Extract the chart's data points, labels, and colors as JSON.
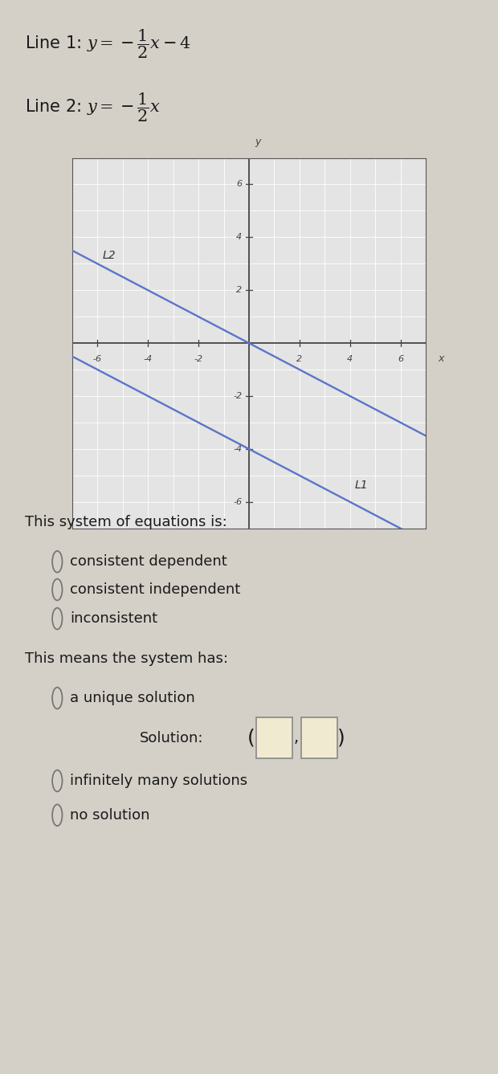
{
  "line1_label": "L1",
  "line2_label": "L2",
  "line_color": "#5b75c8",
  "line1_slope": -0.5,
  "line1_intercept": -4,
  "line2_slope": -0.5,
  "line2_intercept": 0,
  "xlim": [
    -7,
    7
  ],
  "ylim": [
    -7,
    7
  ],
  "xticks": [
    -6,
    -4,
    -2,
    2,
    4,
    6
  ],
  "yticks": [
    -6,
    -4,
    -2,
    2,
    4,
    6
  ],
  "graph_bg": "#e4e4e4",
  "page_bg": "#d4d0c8",
  "system_label": "This system of equations is:",
  "options1": [
    "consistent dependent",
    "consistent independent",
    "inconsistent"
  ],
  "means_label": "This means the system has:",
  "option_unique": "a unique solution",
  "option_infinite": "infinitely many solutions",
  "option_none": "no solution",
  "text_color": "#1a1a1a",
  "radio_color": "#777777",
  "box_fill": "#f0ead0",
  "box_stroke": "#888888",
  "grid_color": "#ffffff",
  "axis_color": "#444444",
  "tick_label_color": "#444444"
}
